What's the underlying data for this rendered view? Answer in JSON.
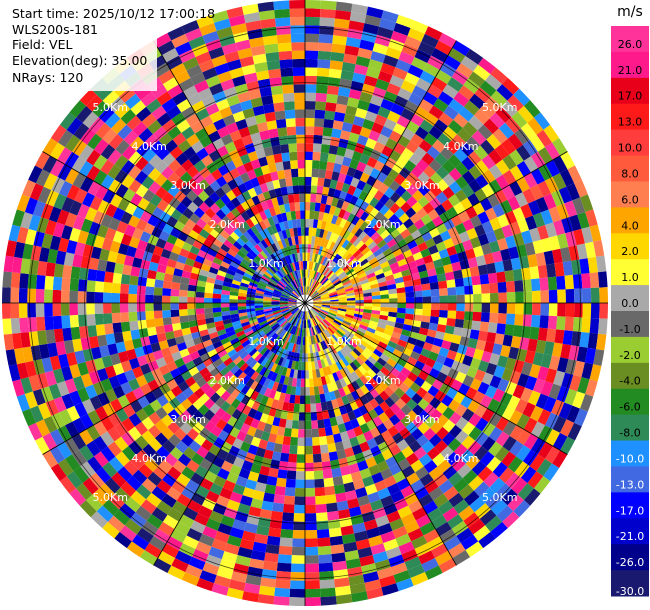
{
  "header": {
    "start_time": "Start time: 2025/10/12 17:00:18",
    "station": "WLS200s-181",
    "field": "Field: VEL",
    "elevation": "Elevation(deg): 35.00",
    "nrays": "NRays: 120"
  },
  "colorbar": {
    "unit": "m/s",
    "ticks": [
      "26.0",
      "21.0",
      "17.0",
      "13.0",
      "10.0",
      "8.0",
      "6.0",
      "4.0",
      "2.0",
      "1.0",
      "0.0",
      "-1.0",
      "-2.0",
      "-4.0",
      "-6.0",
      "-8.0",
      "-10.0",
      "-13.0",
      "-17.0",
      "-21.0",
      "-26.0",
      "-30.0"
    ],
    "colors": [
      "#ff3399",
      "#ff1a8c",
      "#e8001a",
      "#ff1a1a",
      "#ff3d3d",
      "#ff5a3c",
      "#ff7f50",
      "#ffa500",
      "#ffd700",
      "#ffff33",
      "#a9a9a9",
      "#696969",
      "#9acd32",
      "#6b8e23",
      "#228b22",
      "#2e8b57",
      "#1e90ff",
      "#4169e1",
      "#0000ff",
      "#0000cd",
      "#00008b",
      "#191970"
    ]
  },
  "chart_data": {
    "type": "heatmap",
    "projection": "polar (PPI)",
    "field": "VEL",
    "unit": "m/s",
    "nrays": 120,
    "range_rings": [
      "1.0Km",
      "2.0Km",
      "3.0Km",
      "4.0Km",
      "5.0Km"
    ],
    "rings_km": [
      1,
      2,
      3,
      4,
      5
    ],
    "max_range_km": 5.5,
    "grid": true,
    "color_scale_min": -30.0,
    "color_scale_max": 30.0
  }
}
